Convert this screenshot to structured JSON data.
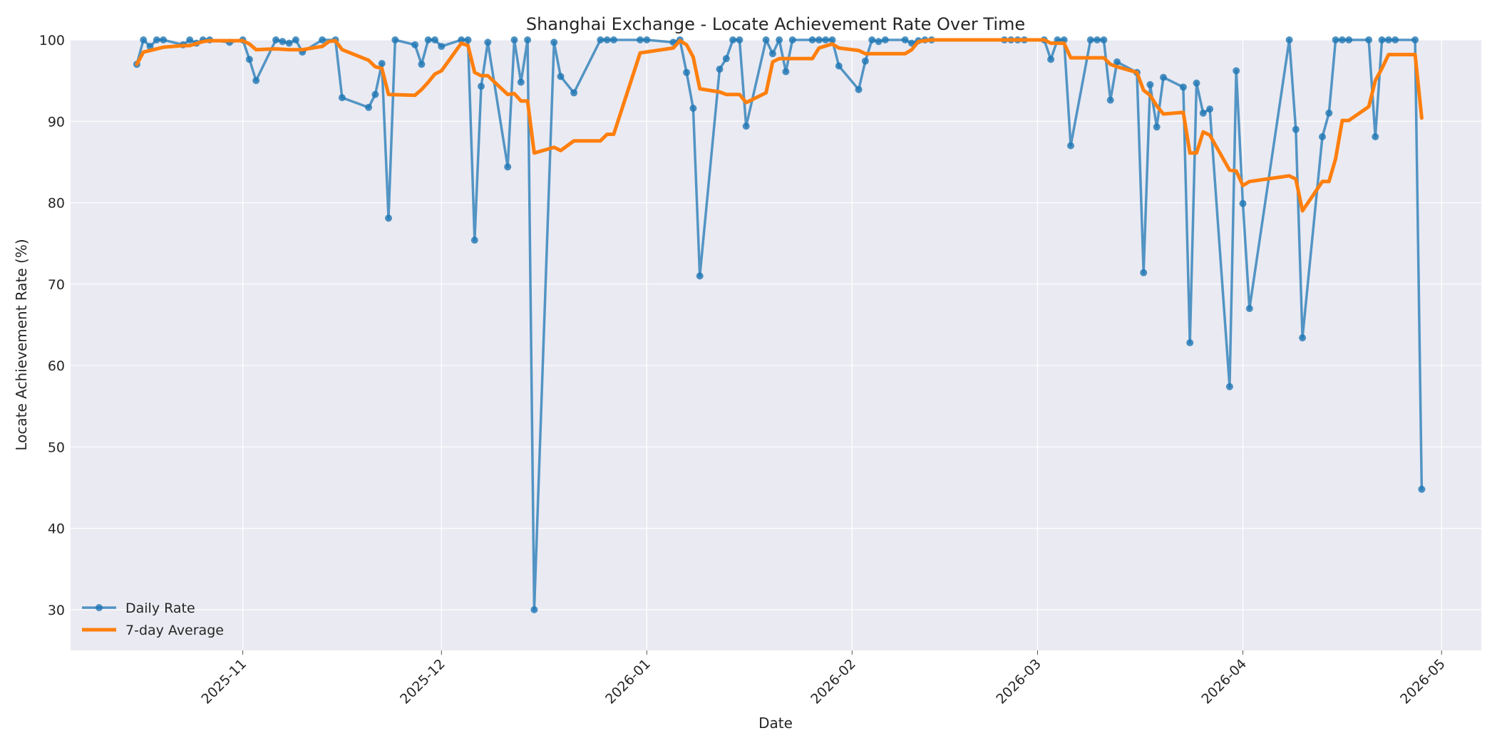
{
  "chart_data": {
    "type": "line",
    "title": "Shanghai Exchange - Locate Achievement Rate Over Time",
    "xlabel": "Date",
    "ylabel": "Locate Achievement Rate (%)",
    "ylim": [
      25,
      100
    ],
    "xlim": [
      "2025-10-06",
      "2026-05-07"
    ],
    "grid": true,
    "legend_position": "lower-left",
    "x_ticks": [
      "2025-11",
      "2025-12",
      "2026-01",
      "2026-02",
      "2026-03",
      "2026-04",
      "2026-05"
    ],
    "y_ticks": [
      30,
      40,
      50,
      60,
      70,
      80,
      90,
      100
    ],
    "series": [
      {
        "name": "Daily Rate",
        "color": "#1f77b4",
        "style": "line-with-markers",
        "points": [
          [
            "2025-10-16",
            97.0
          ],
          [
            "2025-10-17",
            100.0
          ],
          [
            "2025-10-18",
            99.2
          ],
          [
            "2025-10-19",
            100.0
          ],
          [
            "2025-10-20",
            100.0
          ],
          [
            "2025-10-23",
            99.4
          ],
          [
            "2025-10-24",
            100.0
          ],
          [
            "2025-10-25",
            99.6
          ],
          [
            "2025-10-26",
            100.0
          ],
          [
            "2025-10-27",
            100.0
          ],
          [
            "2025-10-30",
            99.7
          ],
          [
            "2025-11-01",
            100.0
          ],
          [
            "2025-11-02",
            97.6
          ],
          [
            "2025-11-03",
            95.0
          ],
          [
            "2025-11-06",
            100.0
          ],
          [
            "2025-11-07",
            99.8
          ],
          [
            "2025-11-08",
            99.6
          ],
          [
            "2025-11-09",
            100.0
          ],
          [
            "2025-11-10",
            98.5
          ],
          [
            "2025-11-13",
            100.0
          ],
          [
            "2025-11-15",
            100.0
          ],
          [
            "2025-11-16",
            92.9
          ],
          [
            "2025-11-20",
            91.7
          ],
          [
            "2025-11-21",
            93.3
          ],
          [
            "2025-11-22",
            97.1
          ],
          [
            "2025-11-23",
            78.1
          ],
          [
            "2025-11-24",
            100.0
          ],
          [
            "2025-11-27",
            99.4
          ],
          [
            "2025-11-28",
            97.0
          ],
          [
            "2025-11-29",
            100.0
          ],
          [
            "2025-11-30",
            100.0
          ],
          [
            "2025-12-01",
            99.2
          ],
          [
            "2025-12-04",
            100.0
          ],
          [
            "2025-12-05",
            100.0
          ],
          [
            "2025-12-06",
            75.4
          ],
          [
            "2025-12-07",
            94.3
          ],
          [
            "2025-12-08",
            99.7
          ],
          [
            "2025-12-11",
            84.4
          ],
          [
            "2025-12-12",
            100.0
          ],
          [
            "2025-12-13",
            94.8
          ],
          [
            "2025-12-14",
            100.0
          ],
          [
            "2025-12-15",
            30.0
          ],
          [
            "2025-12-18",
            99.7
          ],
          [
            "2025-12-19",
            95.5
          ],
          [
            "2025-12-21",
            93.5
          ],
          [
            "2025-12-25",
            100.0
          ],
          [
            "2025-12-26",
            100.0
          ],
          [
            "2025-12-27",
            100.0
          ],
          [
            "2025-12-31",
            100.0
          ],
          [
            "2026-01-01",
            100.0
          ],
          [
            "2026-01-05",
            99.7
          ],
          [
            "2026-01-06",
            100.0
          ],
          [
            "2026-01-07",
            96.0
          ],
          [
            "2026-01-08",
            91.6
          ],
          [
            "2026-01-09",
            71.0
          ],
          [
            "2026-01-12",
            96.4
          ],
          [
            "2026-01-13",
            97.7
          ],
          [
            "2026-01-14",
            100.0
          ],
          [
            "2026-01-15",
            100.0
          ],
          [
            "2026-01-16",
            89.4
          ],
          [
            "2026-01-19",
            100.0
          ],
          [
            "2026-01-20",
            98.3
          ],
          [
            "2026-01-21",
            100.0
          ],
          [
            "2026-01-22",
            96.1
          ],
          [
            "2026-01-23",
            100.0
          ],
          [
            "2026-01-26",
            100.0
          ],
          [
            "2026-01-27",
            100.0
          ],
          [
            "2026-01-28",
            100.0
          ],
          [
            "2026-01-29",
            100.0
          ],
          [
            "2026-01-30",
            96.8
          ],
          [
            "2026-02-02",
            93.9
          ],
          [
            "2026-02-03",
            97.4
          ],
          [
            "2026-02-04",
            100.0
          ],
          [
            "2026-02-05",
            99.8
          ],
          [
            "2026-02-06",
            100.0
          ],
          [
            "2026-02-09",
            100.0
          ],
          [
            "2026-02-10",
            99.6
          ],
          [
            "2026-02-11",
            99.9
          ],
          [
            "2026-02-12",
            100.0
          ],
          [
            "2026-02-13",
            100.0
          ],
          [
            "2026-02-24",
            100.0
          ],
          [
            "2026-02-25",
            100.0
          ],
          [
            "2026-02-26",
            100.0
          ],
          [
            "2026-02-27",
            100.0
          ],
          [
            "2026-03-02",
            100.0
          ],
          [
            "2026-03-03",
            97.6
          ],
          [
            "2026-03-04",
            100.0
          ],
          [
            "2026-03-05",
            100.0
          ],
          [
            "2026-03-06",
            87.0
          ],
          [
            "2026-03-09",
            100.0
          ],
          [
            "2026-03-10",
            100.0
          ],
          [
            "2026-03-11",
            100.0
          ],
          [
            "2026-03-12",
            92.6
          ],
          [
            "2026-03-13",
            97.3
          ],
          [
            "2026-03-16",
            96.0
          ],
          [
            "2026-03-17",
            71.4
          ],
          [
            "2026-03-18",
            94.5
          ],
          [
            "2026-03-19",
            89.3
          ],
          [
            "2026-03-20",
            95.4
          ],
          [
            "2026-03-23",
            94.2
          ],
          [
            "2026-03-24",
            62.8
          ],
          [
            "2026-03-25",
            94.7
          ],
          [
            "2026-03-26",
            91.0
          ],
          [
            "2026-03-27",
            91.5
          ],
          [
            "2026-03-30",
            57.4
          ],
          [
            "2026-03-31",
            96.2
          ],
          [
            "2026-04-01",
            79.9
          ],
          [
            "2026-04-02",
            67.0
          ],
          [
            "2026-04-08",
            100.0
          ],
          [
            "2026-04-09",
            89.0
          ],
          [
            "2026-04-10",
            63.4
          ],
          [
            "2026-04-13",
            88.1
          ],
          [
            "2026-04-14",
            91.0
          ],
          [
            "2026-04-15",
            100.0
          ],
          [
            "2026-04-16",
            100.0
          ],
          [
            "2026-04-17",
            100.0
          ],
          [
            "2026-04-20",
            100.0
          ],
          [
            "2026-04-21",
            88.1
          ],
          [
            "2026-04-22",
            100.0
          ],
          [
            "2026-04-23",
            100.0
          ],
          [
            "2026-04-24",
            100.0
          ],
          [
            "2026-04-27",
            100.0
          ],
          [
            "2026-04-28",
            44.8
          ]
        ]
      },
      {
        "name": "7-day Average",
        "color": "#ff7f0e",
        "style": "line",
        "points": [
          [
            "2025-10-16",
            97.0
          ],
          [
            "2025-10-17",
            98.5
          ],
          [
            "2025-10-18",
            98.7
          ],
          [
            "2025-10-20",
            99.1
          ],
          [
            "2025-10-23",
            99.3
          ],
          [
            "2025-10-24",
            99.3
          ],
          [
            "2025-10-26",
            99.8
          ],
          [
            "2025-10-27",
            99.9
          ],
          [
            "2025-10-30",
            99.9
          ],
          [
            "2025-11-01",
            99.9
          ],
          [
            "2025-11-02",
            99.5
          ],
          [
            "2025-11-03",
            98.8
          ],
          [
            "2025-11-06",
            98.9
          ],
          [
            "2025-11-08",
            98.8
          ],
          [
            "2025-11-10",
            98.8
          ],
          [
            "2025-11-13",
            99.2
          ],
          [
            "2025-11-14",
            99.8
          ],
          [
            "2025-11-15",
            99.9
          ],
          [
            "2025-11-16",
            98.8
          ],
          [
            "2025-11-20",
            97.5
          ],
          [
            "2025-11-21",
            96.7
          ],
          [
            "2025-11-22",
            96.5
          ],
          [
            "2025-11-23",
            93.3
          ],
          [
            "2025-11-27",
            93.2
          ],
          [
            "2025-11-28",
            93.9
          ],
          [
            "2025-11-29",
            94.8
          ],
          [
            "2025-11-30",
            95.8
          ],
          [
            "2025-12-01",
            96.2
          ],
          [
            "2025-12-04",
            99.6
          ],
          [
            "2025-12-05",
            99.3
          ],
          [
            "2025-12-06",
            96.0
          ],
          [
            "2025-12-07",
            95.6
          ],
          [
            "2025-12-08",
            95.6
          ],
          [
            "2025-12-11",
            93.3
          ],
          [
            "2025-12-12",
            93.4
          ],
          [
            "2025-12-13",
            92.5
          ],
          [
            "2025-12-14",
            92.5
          ],
          [
            "2025-12-15",
            86.1
          ],
          [
            "2025-12-18",
            86.8
          ],
          [
            "2025-12-19",
            86.4
          ],
          [
            "2025-12-21",
            87.6
          ],
          [
            "2025-12-25",
            87.6
          ],
          [
            "2025-12-26",
            88.4
          ],
          [
            "2025-12-27",
            88.4
          ],
          [
            "2025-12-31",
            98.4
          ],
          [
            "2026-01-05",
            99.0
          ],
          [
            "2026-01-06",
            99.9
          ],
          [
            "2026-01-07",
            99.4
          ],
          [
            "2026-01-08",
            97.9
          ],
          [
            "2026-01-09",
            94.0
          ],
          [
            "2026-01-12",
            93.6
          ],
          [
            "2026-01-13",
            93.3
          ],
          [
            "2026-01-15",
            93.3
          ],
          [
            "2026-01-16",
            92.3
          ],
          [
            "2026-01-19",
            93.5
          ],
          [
            "2026-01-20",
            97.3
          ],
          [
            "2026-01-21",
            97.7
          ],
          [
            "2026-01-26",
            97.7
          ],
          [
            "2026-01-27",
            99.0
          ],
          [
            "2026-01-29",
            99.5
          ],
          [
            "2026-01-30",
            99.0
          ],
          [
            "2026-02-02",
            98.7
          ],
          [
            "2026-02-03",
            98.3
          ],
          [
            "2026-02-09",
            98.3
          ],
          [
            "2026-02-10",
            98.8
          ],
          [
            "2026-02-11",
            99.8
          ],
          [
            "2026-02-12",
            99.9
          ],
          [
            "2026-02-13",
            100.0
          ],
          [
            "2026-03-02",
            100.0
          ],
          [
            "2026-03-03",
            99.6
          ],
          [
            "2026-03-05",
            99.6
          ],
          [
            "2026-03-06",
            97.8
          ],
          [
            "2026-03-11",
            97.8
          ],
          [
            "2026-03-12",
            97.0
          ],
          [
            "2026-03-13",
            96.7
          ],
          [
            "2026-03-16",
            96.0
          ],
          [
            "2026-03-17",
            93.8
          ],
          [
            "2026-03-18",
            93.2
          ],
          [
            "2026-03-19",
            91.9
          ],
          [
            "2026-03-20",
            90.9
          ],
          [
            "2026-03-23",
            91.1
          ],
          [
            "2026-03-24",
            86.1
          ],
          [
            "2026-03-25",
            86.1
          ],
          [
            "2026-03-26",
            88.7
          ],
          [
            "2026-03-27",
            88.3
          ],
          [
            "2026-03-30",
            84.0
          ],
          [
            "2026-03-31",
            83.9
          ],
          [
            "2026-04-01",
            82.1
          ],
          [
            "2026-04-02",
            82.6
          ],
          [
            "2026-04-08",
            83.3
          ],
          [
            "2026-04-09",
            82.9
          ],
          [
            "2026-04-10",
            79.0
          ],
          [
            "2026-04-13",
            82.6
          ],
          [
            "2026-04-14",
            82.6
          ],
          [
            "2026-04-15",
            85.4
          ],
          [
            "2026-04-16",
            90.1
          ],
          [
            "2026-04-17",
            90.1
          ],
          [
            "2026-04-20",
            91.8
          ],
          [
            "2026-04-21",
            95.0
          ],
          [
            "2026-04-22",
            96.5
          ],
          [
            "2026-04-23",
            98.2
          ],
          [
            "2026-04-27",
            98.2
          ],
          [
            "2026-04-28",
            90.4
          ]
        ]
      }
    ]
  }
}
